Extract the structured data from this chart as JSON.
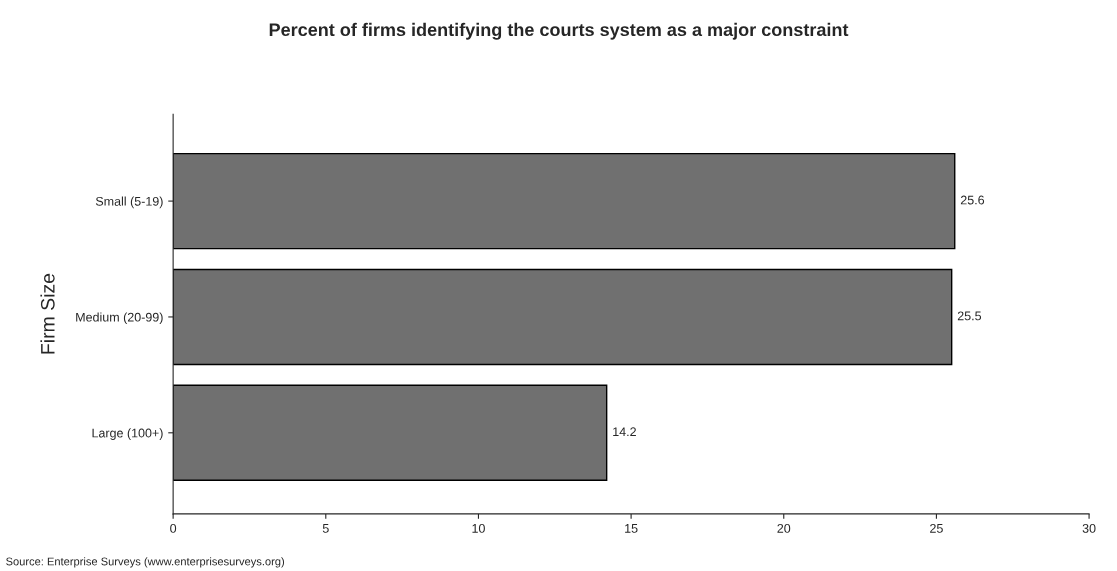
{
  "chart_data": {
    "type": "bar",
    "orientation": "horizontal",
    "title": "Percent of firms identifying the courts system as a major constraint",
    "ylabel": "Firm Size",
    "categories": [
      "Small (5-19)",
      "Medium (20-99)",
      "Large (100+)"
    ],
    "values": [
      25.6,
      25.5,
      14.2
    ],
    "color": "#707070",
    "xlim": [
      0,
      30
    ],
    "xticks": [
      0,
      5,
      10,
      15,
      20,
      25,
      30
    ],
    "data_labels": true,
    "grid": false,
    "legend": false,
    "annotations": [
      "Source: Enterprise Surveys (www.enterprisesurveys.org)"
    ]
  }
}
